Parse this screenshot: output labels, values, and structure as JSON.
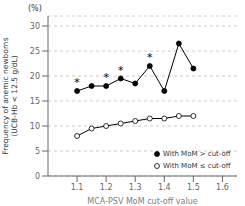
{
  "chart_data": {
    "type": "line",
    "x": [
      1.1,
      1.15,
      1.2,
      1.25,
      1.3,
      1.35,
      1.4,
      1.45,
      1.5
    ],
    "series": [
      {
        "name": "With MoM > cut-off",
        "color": "#000000",
        "marker": "circle",
        "values": [
          17.0,
          18.0,
          18.0,
          19.5,
          18.5,
          22.0,
          17.0,
          26.5,
          21.5
        ]
      },
      {
        "name": "With MoM ≤ cut-off",
        "color": "#000000",
        "marker": "circle_open",
        "values": [
          8.0,
          9.5,
          10.0,
          10.5,
          11.0,
          11.5,
          11.5,
          12.0,
          12.0
        ]
      }
    ],
    "xlim": [
      1.0,
      1.65
    ],
    "ylim": [
      0,
      32
    ],
    "xticks": [
      1.1,
      1.2,
      1.3,
      1.4,
      1.5,
      1.6
    ],
    "yticks": [
      0,
      5,
      10,
      15,
      20,
      25,
      30
    ],
    "xlabel": "MCA-PSV MoM cut-off value",
    "ylabel": "Frequency of anemic newborns\n(UCB-Hb < 12.5 g/dL)",
    "annotations": [
      {
        "text": "(%)"
      },
      {
        "text": "*",
        "x": 1.1,
        "y": 17.0
      },
      {
        "text": "*",
        "x": 1.2,
        "y": 18.0
      },
      {
        "text": "*",
        "x": 1.25,
        "y": 19.5
      },
      {
        "text": "*",
        "x": 1.35,
        "y": 22.0
      }
    ],
    "grid": true,
    "legend": "lower right"
  }
}
